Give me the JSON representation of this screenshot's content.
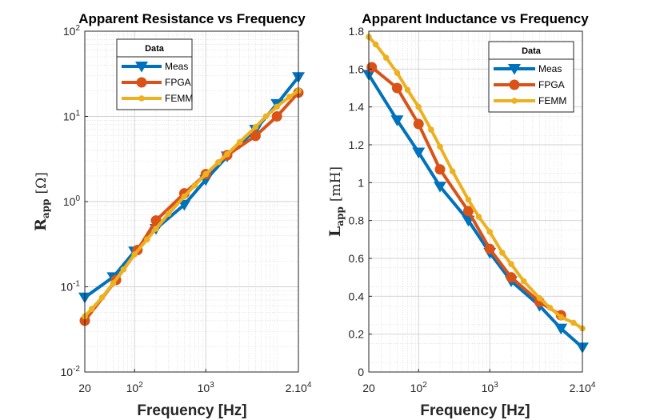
{
  "chart_data": [
    {
      "type": "line",
      "title": "Apparent Resistance vs Frequency",
      "xlabel": "Frequency [Hz]",
      "ylabel_main": "R",
      "ylabel_sub": "app",
      "ylabel_unit": "[Ω]",
      "xscale": "log",
      "yscale": "log",
      "xlim": [
        20,
        20000
      ],
      "ylim": [
        0.01,
        100
      ],
      "grid": true,
      "legend_title": "Data",
      "legend_location": "top-left",
      "xticks": [
        {
          "value": 20,
          "label": "20"
        },
        {
          "value": 100,
          "base": "10",
          "exp": "2"
        },
        {
          "value": 1000,
          "base": "10",
          "exp": "3"
        },
        {
          "value": 20000,
          "base": "2.10",
          "exp": "4"
        }
      ],
      "yticks": [
        {
          "value": 0.01,
          "base": "10",
          "exp": "-2"
        },
        {
          "value": 0.1,
          "base": "10",
          "exp": "-1"
        },
        {
          "value": 1,
          "base": "10",
          "exp": "0"
        },
        {
          "value": 10,
          "base": "10",
          "exp": "1"
        },
        {
          "value": 100,
          "base": "10",
          "exp": "2"
        }
      ],
      "series": [
        {
          "name": "Meas",
          "color": "#0072BD",
          "marker": "triangle-down",
          "x": [
            20,
            50,
            100,
            200,
            500,
            1000,
            2000,
            5000,
            10000,
            20000
          ],
          "y": [
            0.075,
            0.13,
            0.26,
            0.48,
            0.92,
            1.8,
            3.4,
            7,
            14,
            29
          ]
        },
        {
          "name": "FPGA",
          "color": "#D95319",
          "marker": "circle",
          "x": [
            20,
            55,
            110,
            200,
            500,
            1000,
            2000,
            5000,
            10000,
            20000
          ],
          "y": [
            0.04,
            0.12,
            0.27,
            0.6,
            1.25,
            2.1,
            3.5,
            5.9,
            10,
            19
          ]
        },
        {
          "name": "FEMM",
          "color": "#EDB120",
          "marker": "circle-small",
          "x": [
            20,
            25,
            35,
            50,
            70,
            100,
            150,
            200,
            300,
            500,
            700,
            1000,
            1500,
            2000,
            3000,
            5000,
            7000,
            10000,
            15000,
            20000
          ],
          "y": [
            0.045,
            0.055,
            0.075,
            0.11,
            0.16,
            0.24,
            0.36,
            0.48,
            0.72,
            1.15,
            1.55,
            2.1,
            2.9,
            3.6,
            5,
            7.5,
            10,
            13,
            17,
            20
          ]
        }
      ]
    },
    {
      "type": "line",
      "title": "Apparent Inductance vs Frequency",
      "xlabel": "Frequency [Hz]",
      "ylabel_main": "L",
      "ylabel_sub": "app",
      "ylabel_unit": "[mH]",
      "xscale": "log",
      "yscale": "linear",
      "xlim": [
        20,
        20000
      ],
      "ylim": [
        0,
        1.8
      ],
      "grid": true,
      "legend_title": "Data",
      "legend_location": "top-right",
      "xticks": [
        {
          "value": 20,
          "label": "20"
        },
        {
          "value": 100,
          "base": "10",
          "exp": "2"
        },
        {
          "value": 1000,
          "base": "10",
          "exp": "3"
        },
        {
          "value": 20000,
          "base": "2.10",
          "exp": "4"
        }
      ],
      "yticks": [
        {
          "value": 0,
          "label": "0"
        },
        {
          "value": 0.2,
          "label": "0.2"
        },
        {
          "value": 0.4,
          "label": "0.4"
        },
        {
          "value": 0.6,
          "label": "0.6"
        },
        {
          "value": 0.8,
          "label": "0.8"
        },
        {
          "value": 1,
          "label": "1"
        },
        {
          "value": 1.2,
          "label": "1.2"
        },
        {
          "value": 1.4,
          "label": "1.4"
        },
        {
          "value": 1.6,
          "label": "1.6"
        },
        {
          "value": 1.8,
          "label": "1.8"
        }
      ],
      "series": [
        {
          "name": "Meas",
          "color": "#0072BD",
          "marker": "triangle-down",
          "x": [
            20,
            50,
            100,
            200,
            500,
            1000,
            2000,
            5000,
            10000,
            20000
          ],
          "y": [
            1.57,
            1.33,
            1.16,
            0.98,
            0.8,
            0.63,
            0.48,
            0.35,
            0.23,
            0.13
          ]
        },
        {
          "name": "FPGA",
          "color": "#D95319",
          "marker": "circle",
          "x": [
            22,
            50,
            100,
            200,
            500,
            1000,
            2000,
            5000,
            10000
          ],
          "y": [
            1.61,
            1.5,
            1.31,
            1.07,
            0.85,
            0.65,
            0.5,
            0.37,
            0.3
          ]
        },
        {
          "name": "FEMM",
          "color": "#EDB120",
          "marker": "circle-small",
          "x": [
            20,
            25,
            35,
            50,
            70,
            100,
            150,
            200,
            300,
            500,
            700,
            1000,
            1500,
            2000,
            3000,
            5000,
            7000,
            10000,
            15000,
            20000
          ],
          "y": [
            1.77,
            1.73,
            1.66,
            1.58,
            1.49,
            1.4,
            1.28,
            1.19,
            1.06,
            0.91,
            0.82,
            0.74,
            0.63,
            0.57,
            0.48,
            0.39,
            0.34,
            0.29,
            0.26,
            0.23
          ]
        }
      ]
    }
  ]
}
